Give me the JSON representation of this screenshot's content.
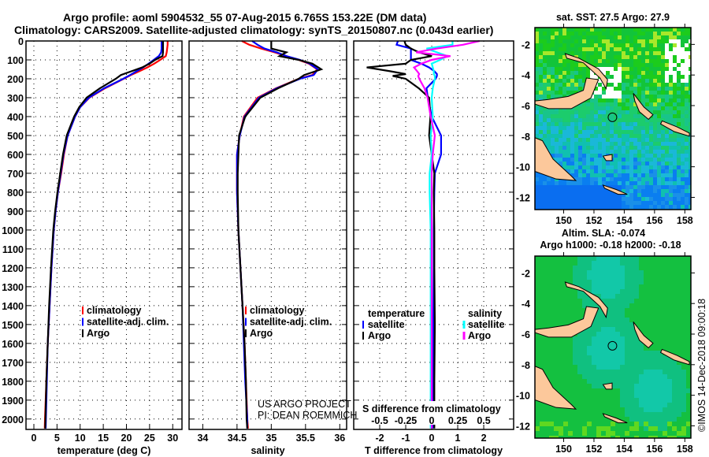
{
  "title_line1": "Argo profile: aoml 5904532_55 07-Aug-2015 6.765S 153.22E (DM data)",
  "title_line2": "Climatology: CARS2009. Satellite-adjusted climatology: synTS_20150807.nc (0.043d earlier)",
  "watermark": [
    "US ARGO PROJECT",
    "PI: DEAN ROEMMICH"
  ],
  "credit": "©IMOS 14-Dec-2018 09:00:18",
  "colors": {
    "clim": "#ff0000",
    "sat": "#0000ff",
    "argo": "#000000",
    "sal_sat": "#00ffff",
    "sal_argo": "#ff00ff",
    "land": "#fcc89b"
  },
  "chart_data": [
    {
      "type": "line",
      "id": "temperature",
      "xlabel": "temperature (deg C)",
      "ylabel": "depth",
      "xlim": [
        -1.7,
        32
      ],
      "ylim": [
        2055,
        0
      ],
      "xticks": [
        0,
        5,
        10,
        15,
        20,
        25,
        30
      ],
      "yticks": [
        0,
        100,
        200,
        300,
        400,
        500,
        600,
        700,
        800,
        900,
        1000,
        1100,
        1200,
        1300,
        1400,
        1500,
        1600,
        1700,
        1800,
        1900,
        2000
      ],
      "grid": true,
      "legend": [
        "climatology",
        "satellite-adj. clim.",
        "Argo"
      ],
      "depth": [
        0,
        20,
        40,
        60,
        80,
        100,
        120,
        140,
        160,
        180,
        200,
        250,
        300,
        350,
        400,
        500,
        600,
        700,
        800,
        900,
        1000,
        1200,
        1400,
        1600,
        1800,
        2000,
        2050
      ],
      "series": [
        {
          "name": "climatology",
          "color": "#ff0000",
          "values": [
            28.9,
            28.9,
            28.8,
            28.7,
            28.5,
            27.3,
            26.0,
            24.5,
            22.8,
            21.0,
            19.4,
            15.4,
            12.0,
            10.0,
            8.9,
            7.3,
            6.5,
            5.9,
            5.2,
            4.7,
            4.3,
            3.8,
            3.4,
            3.0,
            2.7,
            2.4,
            2.35
          ]
        },
        {
          "name": "satellite-adj. clim.",
          "color": "#0000ff",
          "values": [
            27.6,
            27.6,
            27.6,
            27.5,
            27.0,
            25.9,
            24.8,
            23.6,
            22.2,
            20.8,
            19.3,
            15.2,
            11.9,
            10.0,
            8.9,
            7.3,
            6.4,
            5.8,
            5.2,
            4.7,
            4.3,
            3.8,
            3.4,
            3.0,
            2.8,
            2.6,
            2.55
          ]
        },
        {
          "name": "Argo",
          "color": "#000000",
          "values": [
            27.9,
            27.9,
            27.9,
            27.9,
            27.8,
            26.2,
            25.0,
            23.4,
            21.1,
            18.8,
            17.7,
            14.3,
            11.4,
            9.8,
            8.7,
            7.1,
            6.3,
            5.7,
            5.1,
            4.6,
            4.2,
            3.7,
            3.3,
            3.0,
            2.7,
            2.5,
            2.45
          ]
        }
      ]
    },
    {
      "type": "line",
      "id": "salinity",
      "xlabel": "salinity",
      "xlim": [
        33.8,
        36.1
      ],
      "ylim": [
        2055,
        0
      ],
      "xticks": [
        34,
        34.5,
        35,
        35.5,
        36
      ],
      "grid": true,
      "legend": [
        "climatology",
        "satellite-adj. clim.",
        "Argo"
      ],
      "depth": [
        0,
        20,
        40,
        60,
        80,
        100,
        120,
        150,
        180,
        200,
        250,
        300,
        400,
        500,
        600,
        700,
        800,
        1000,
        1200,
        1400,
        1600,
        1800,
        2000,
        2050
      ],
      "series": [
        {
          "name": "climatology",
          "color": "#ff0000",
          "values": [
            34.57,
            34.68,
            34.85,
            35.05,
            35.22,
            35.4,
            35.55,
            35.67,
            35.6,
            35.4,
            35.07,
            34.8,
            34.6,
            34.54,
            34.5,
            34.5,
            34.5,
            34.52,
            34.55,
            34.58,
            34.61,
            34.63,
            34.65,
            34.66
          ]
        },
        {
          "name": "satellite-adj. clim.",
          "color": "#0000ff",
          "values": [
            34.72,
            34.8,
            34.9,
            35.08,
            35.22,
            35.42,
            35.56,
            35.68,
            35.62,
            35.42,
            35.08,
            34.82,
            34.61,
            34.54,
            34.5,
            34.5,
            34.5,
            34.52,
            34.55,
            34.58,
            34.6,
            34.62,
            34.65,
            34.65
          ]
        },
        {
          "name": "Argo",
          "color": "#000000",
          "values": [
            35.0,
            35.0,
            35.0,
            35.22,
            35.12,
            35.4,
            35.6,
            35.73,
            35.48,
            35.4,
            35.1,
            34.84,
            34.62,
            34.53,
            34.52,
            34.51,
            34.51,
            34.52,
            34.55,
            34.58,
            34.61,
            34.63,
            34.64,
            34.65
          ]
        }
      ]
    },
    {
      "type": "line",
      "id": "difference",
      "xlabel": "T difference from climatology",
      "xlabel2": "S difference from climatology",
      "xlim": [
        -3.0,
        3.15
      ],
      "ylim": [
        2055,
        0
      ],
      "xticks": [
        -2,
        -1,
        0,
        1,
        2
      ],
      "xticks2": [
        -0.5,
        -0.25,
        0,
        0.25,
        0.5
      ],
      "xtick2_labels": [
        "-0.5",
        "-0.25",
        "0",
        "0.25",
        "0.5"
      ],
      "grid": true,
      "legend_temperature": {
        "title": "temperature",
        "items": [
          "satellite",
          "Argo"
        ]
      },
      "legend_salinity": {
        "title": "salinity",
        "items": [
          "satellite",
          "Argo"
        ]
      },
      "depth": [
        0,
        20,
        40,
        60,
        80,
        100,
        120,
        140,
        160,
        175,
        185,
        200,
        250,
        300,
        400,
        500,
        600,
        700,
        800,
        1000,
        1200,
        1500,
        1800,
        2000,
        2050
      ],
      "series": [
        {
          "name": "T satellite",
          "color": "#0000ff",
          "units": "T",
          "values": [
            -1.3,
            -1.35,
            -0.8,
            -0.8,
            -0.8,
            -0.8,
            -0.4,
            -0.1,
            0.1,
            0.2,
            0.2,
            0.15,
            -0.2,
            -0.15,
            0.0,
            0.36,
            0.36,
            0.12,
            0.1,
            0.08,
            0.08,
            0.06,
            0.05,
            0.04,
            0.04
          ]
        },
        {
          "name": "T Argo",
          "color": "#000000",
          "units": "T",
          "values": [
            -1.05,
            -1.0,
            -0.8,
            -0.5,
            0.0,
            -0.8,
            -1.0,
            -2.5,
            -1.6,
            -1.0,
            -1.5,
            -1.0,
            -0.5,
            -0.1,
            -0.05,
            -0.1,
            0.0,
            0.1,
            0.08,
            0.1,
            0.1,
            0.12,
            0.1,
            0.1,
            0.1
          ]
        },
        {
          "name": "S satellite",
          "color": "#00ffff",
          "units": "S",
          "values": [
            0.2,
            0.2,
            -0.05,
            0.05,
            0.15,
            0.08,
            0.0,
            0.01,
            0.02,
            0.02,
            0.03,
            0.03,
            0.01,
            0.0,
            0.01,
            -0.01,
            0.0,
            -0.02,
            -0.02,
            -0.01,
            -0.01,
            -0.01,
            -0.01,
            -0.01,
            -0.01
          ]
        },
        {
          "name": "S Argo",
          "color": "#ff00ff",
          "units": "S",
          "values": [
            0.46,
            0.3,
            0.05,
            -0.15,
            0.18,
            0.0,
            -0.1,
            -0.17,
            -0.14,
            -0.12,
            -0.13,
            -0.12,
            -0.07,
            -0.04,
            -0.01,
            0.03,
            0.01,
            0.0,
            0.0,
            0.0,
            0.0,
            0.0,
            0.0,
            0.0,
            0.0
          ]
        }
      ]
    },
    {
      "type": "heatmap",
      "id": "sst-map",
      "title": "sat. SST: 27.5 Argo: 27.9",
      "xlim": [
        148.1,
        158.4
      ],
      "ylim": [
        -12.8,
        -0.9
      ],
      "xticks": [
        150,
        152,
        154,
        156,
        158
      ],
      "yticks": [
        -2,
        -4,
        -6,
        -8,
        -10,
        -12
      ],
      "marker": {
        "lon": 153.22,
        "lat": -6.765
      }
    },
    {
      "type": "heatmap",
      "id": "sla-map",
      "title": "Altim. SLA: -0.074",
      "subtitle": "Argo h1000: -0.18 h2000: -0.18",
      "xlim": [
        148.1,
        158.4
      ],
      "ylim": [
        -12.8,
        -0.9
      ],
      "xticks": [
        150,
        152,
        154,
        156,
        158
      ],
      "yticks": [
        -2,
        -4,
        -6,
        -8,
        -10,
        -12
      ],
      "marker": {
        "lon": 153.22,
        "lat": -6.765
      }
    }
  ]
}
